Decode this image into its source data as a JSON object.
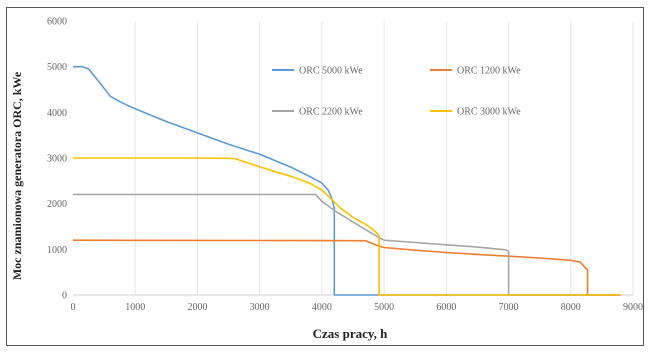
{
  "chart_data": {
    "type": "line",
    "xlabel": "Czas pracy, h",
    "ylabel": "Moc znamionowa generatora ORC, kWe",
    "xlim": [
      0,
      9000
    ],
    "ylim": [
      0,
      6000
    ],
    "x_ticks": [
      0,
      1000,
      2000,
      3000,
      4000,
      5000,
      6000,
      7000,
      8000,
      9000
    ],
    "y_ticks": [
      0,
      1000,
      2000,
      3000,
      4000,
      5000,
      6000
    ],
    "grid": "vertical",
    "legend_position": "inside-top",
    "series": [
      {
        "name": "ORC 5000 kWe",
        "color": "#5b9bd5",
        "points": [
          [
            0,
            5000
          ],
          [
            150,
            5000
          ],
          [
            250,
            4950
          ],
          [
            400,
            4700
          ],
          [
            600,
            4350
          ],
          [
            800,
            4200
          ],
          [
            1000,
            4080
          ],
          [
            1500,
            3800
          ],
          [
            2000,
            3550
          ],
          [
            2500,
            3300
          ],
          [
            3000,
            3080
          ],
          [
            3500,
            2800
          ],
          [
            3800,
            2600
          ],
          [
            4000,
            2450
          ],
          [
            4100,
            2300
          ],
          [
            4150,
            2150
          ],
          [
            4180,
            2000
          ],
          [
            4200,
            1900
          ],
          [
            4200,
            0
          ],
          [
            8800,
            0
          ]
        ]
      },
      {
        "name": "ORC 1200 kWe",
        "color": "#ed7d31",
        "points": [
          [
            0,
            1200
          ],
          [
            1000,
            1198
          ],
          [
            2000,
            1196
          ],
          [
            3000,
            1194
          ],
          [
            4000,
            1192
          ],
          [
            4700,
            1190
          ],
          [
            4900,
            1080
          ],
          [
            5000,
            1040
          ],
          [
            5500,
            980
          ],
          [
            6000,
            930
          ],
          [
            6500,
            890
          ],
          [
            7000,
            850
          ],
          [
            7500,
            810
          ],
          [
            8000,
            760
          ],
          [
            8150,
            720
          ],
          [
            8230,
            600
          ],
          [
            8270,
            550
          ],
          [
            8270,
            0
          ],
          [
            8800,
            0
          ]
        ]
      },
      {
        "name": "ORC 2200 kWe",
        "color": "#a5a5a5",
        "points": [
          [
            0,
            2200
          ],
          [
            1000,
            2200
          ],
          [
            2000,
            2200
          ],
          [
            3000,
            2200
          ],
          [
            3900,
            2200
          ],
          [
            4000,
            2050
          ],
          [
            4200,
            1850
          ],
          [
            4500,
            1600
          ],
          [
            4800,
            1350
          ],
          [
            4930,
            1250
          ],
          [
            5000,
            1200
          ],
          [
            5500,
            1150
          ],
          [
            6000,
            1100
          ],
          [
            6500,
            1050
          ],
          [
            6950,
            990
          ],
          [
            7000,
            960
          ],
          [
            7000,
            0
          ],
          [
            8800,
            0
          ]
        ]
      },
      {
        "name": "ORC 3000 kWe",
        "color": "#ffc000",
        "points": [
          [
            0,
            3000
          ],
          [
            1000,
            3000
          ],
          [
            2000,
            3000
          ],
          [
            2600,
            2990
          ],
          [
            2900,
            2850
          ],
          [
            3200,
            2720
          ],
          [
            3500,
            2600
          ],
          [
            3800,
            2450
          ],
          [
            4000,
            2300
          ],
          [
            4150,
            2100
          ],
          [
            4300,
            1900
          ],
          [
            4500,
            1700
          ],
          [
            4700,
            1550
          ],
          [
            4850,
            1400
          ],
          [
            4920,
            1300
          ],
          [
            4920,
            0
          ],
          [
            8800,
            0
          ]
        ]
      }
    ]
  }
}
